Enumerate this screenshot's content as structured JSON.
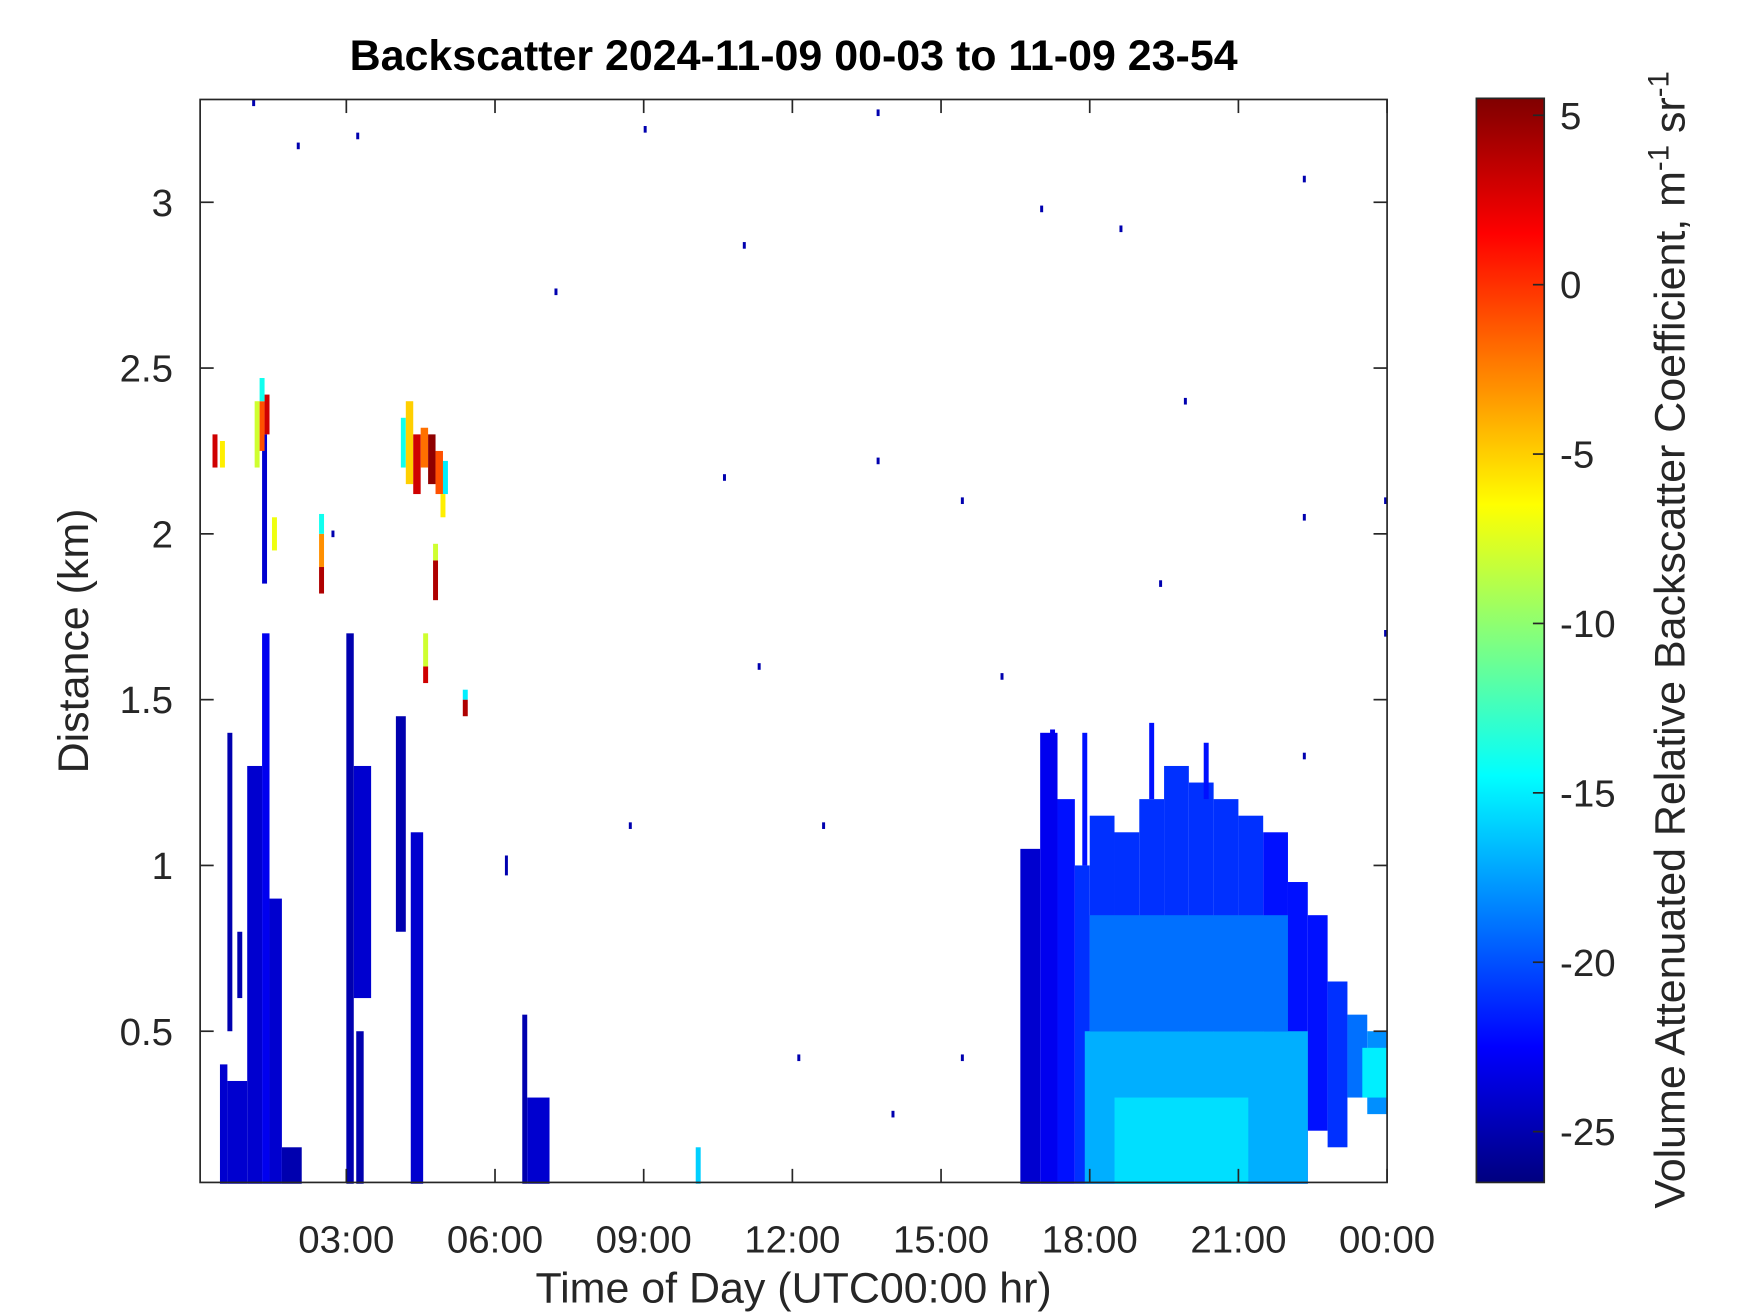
{
  "chart_data": {
    "type": "heatmap",
    "title": "Backscatter 2024-11-09 00-03 to 11-09 23-54",
    "x_label": "Time of Day (UTC00:00 hr)",
    "y_label": "Distance (km)",
    "colorbar_label": [
      "Volume Attenuated Relative Backscatter Coefficient, m",
      "-1",
      " sr",
      "-1"
    ],
    "colormap": "jet",
    "xlim": [
      0.05,
      24
    ],
    "xticks": [
      {
        "value": 3,
        "label": "03:00"
      },
      {
        "value": 6,
        "label": "06:00"
      },
      {
        "value": 9,
        "label": "09:00"
      },
      {
        "value": 12,
        "label": "12:00"
      },
      {
        "value": 15,
        "label": "15:00"
      },
      {
        "value": 18,
        "label": "18:00"
      },
      {
        "value": 21,
        "label": "21:00"
      },
      {
        "value": 24,
        "label": "00:00"
      }
    ],
    "ylim": [
      0.044,
      3.31
    ],
    "yticks": [
      0.5,
      1,
      1.5,
      2,
      2.5,
      3
    ],
    "clim": [
      -26.5,
      5.5
    ],
    "cticks": [
      5,
      0,
      -5,
      -10,
      -15,
      -20,
      -25
    ],
    "cells": [
      [
        16.6,
        17.0,
        0.04,
        1.05,
        -24
      ],
      [
        17.0,
        17.35,
        0.04,
        1.4,
        -23
      ],
      [
        17.35,
        17.7,
        0.04,
        1.2,
        -22
      ],
      [
        17.7,
        18.0,
        0.04,
        1.0,
        -21
      ],
      [
        17.85,
        17.95,
        1.0,
        1.4,
        -22
      ],
      [
        18.0,
        18.5,
        0.04,
        1.15,
        -21
      ],
      [
        18.5,
        19.0,
        0.04,
        1.1,
        -21
      ],
      [
        19.0,
        19.5,
        0.04,
        1.2,
        -21
      ],
      [
        19.5,
        20.0,
        0.04,
        1.3,
        -21
      ],
      [
        20.0,
        20.5,
        0.04,
        1.25,
        -21
      ],
      [
        20.5,
        21.0,
        0.04,
        1.2,
        -21
      ],
      [
        21.0,
        21.5,
        0.04,
        1.15,
        -21
      ],
      [
        21.5,
        22.0,
        0.04,
        1.1,
        -22
      ],
      [
        22.0,
        22.4,
        0.04,
        0.95,
        -22
      ],
      [
        22.4,
        22.8,
        0.2,
        0.85,
        -22
      ],
      [
        22.8,
        23.2,
        0.15,
        0.65,
        -21
      ],
      [
        23.2,
        23.6,
        0.3,
        0.55,
        -19
      ],
      [
        23.6,
        24.0,
        0.25,
        0.5,
        -18
      ],
      [
        17.9,
        22.4,
        0.04,
        0.5,
        -17
      ],
      [
        18.0,
        22.0,
        0.5,
        0.85,
        -19
      ],
      [
        18.5,
        21.2,
        0.04,
        0.3,
        -15.5
      ],
      [
        23.5,
        24.0,
        0.3,
        0.45,
        -15
      ],
      [
        17.2,
        17.3,
        1.2,
        1.41,
        -23
      ],
      [
        19.2,
        19.3,
        1.2,
        1.43,
        -22
      ],
      [
        20.3,
        20.4,
        1.2,
        1.37,
        -22
      ],
      [
        0.45,
        0.6,
        0.04,
        0.4,
        -24
      ],
      [
        0.6,
        1.0,
        0.04,
        0.35,
        -24
      ],
      [
        0.6,
        0.7,
        0.5,
        1.4,
        -25
      ],
      [
        1.0,
        1.3,
        0.04,
        1.3,
        -24
      ],
      [
        1.3,
        1.45,
        0.04,
        1.7,
        -23
      ],
      [
        1.45,
        1.7,
        0.04,
        0.9,
        -24
      ],
      [
        1.7,
        2.1,
        0.04,
        0.15,
        -25
      ],
      [
        1.3,
        1.4,
        1.85,
        2.3,
        -24
      ],
      [
        0.8,
        0.9,
        0.6,
        0.8,
        -25
      ],
      [
        1.15,
        1.25,
        2.2,
        2.4,
        -8
      ],
      [
        1.25,
        1.35,
        2.25,
        2.4,
        -1
      ],
      [
        1.35,
        1.45,
        2.3,
        2.42,
        3
      ],
      [
        1.25,
        1.35,
        2.4,
        2.47,
        -14
      ],
      [
        0.3,
        0.4,
        2.2,
        2.3,
        3
      ],
      [
        0.45,
        0.55,
        2.2,
        2.28,
        -6
      ],
      [
        2.45,
        2.55,
        1.82,
        1.9,
        4
      ],
      [
        2.45,
        2.55,
        1.9,
        2.0,
        -3
      ],
      [
        2.45,
        2.55,
        2.0,
        2.06,
        -14
      ],
      [
        1.5,
        1.6,
        1.95,
        2.05,
        -7
      ],
      [
        3.0,
        3.15,
        0.04,
        1.7,
        -25
      ],
      [
        3.15,
        3.5,
        0.6,
        1.3,
        -24
      ],
      [
        3.2,
        3.35,
        0.04,
        0.5,
        -25
      ],
      [
        4.0,
        4.2,
        0.8,
        1.45,
        -25
      ],
      [
        4.3,
        4.55,
        0.04,
        1.1,
        -24
      ],
      [
        4.55,
        4.65,
        1.55,
        1.6,
        3
      ],
      [
        4.55,
        4.65,
        1.6,
        1.7,
        -8
      ],
      [
        4.1,
        4.2,
        2.2,
        2.35,
        -14
      ],
      [
        4.2,
        4.35,
        2.15,
        2.4,
        -5
      ],
      [
        4.35,
        4.5,
        2.12,
        2.3,
        3
      ],
      [
        4.5,
        4.65,
        2.2,
        2.32,
        -2
      ],
      [
        4.65,
        4.8,
        2.15,
        2.3,
        5
      ],
      [
        4.8,
        4.95,
        2.12,
        2.25,
        -1
      ],
      [
        4.95,
        5.05,
        2.12,
        2.22,
        -15
      ],
      [
        4.9,
        5.0,
        2.05,
        2.12,
        -6
      ],
      [
        4.75,
        4.85,
        1.8,
        1.92,
        4
      ],
      [
        4.75,
        4.85,
        1.92,
        1.97,
        -8
      ],
      [
        5.35,
        5.45,
        1.45,
        1.5,
        4
      ],
      [
        5.35,
        5.45,
        1.5,
        1.53,
        -15
      ],
      [
        6.55,
        6.65,
        0.04,
        0.55,
        -25
      ],
      [
        6.65,
        7.1,
        0.04,
        0.3,
        -24
      ],
      [
        10.05,
        10.15,
        0.04,
        0.15,
        -16
      ],
      [
        1.1,
        1.16,
        3.29,
        3.31,
        -25
      ],
      [
        2.0,
        2.06,
        3.16,
        3.18,
        -25
      ],
      [
        3.2,
        3.26,
        3.19,
        3.21,
        -25
      ],
      [
        9.0,
        9.06,
        3.21,
        3.23,
        -25
      ],
      [
        13.7,
        13.76,
        3.26,
        3.28,
        -25
      ],
      [
        22.3,
        22.36,
        3.06,
        3.08,
        -25
      ],
      [
        17.0,
        17.06,
        2.97,
        2.99,
        -25
      ],
      [
        11.0,
        11.06,
        2.86,
        2.88,
        -25
      ],
      [
        7.2,
        7.26,
        2.72,
        2.74,
        -25
      ],
      [
        18.6,
        18.66,
        2.91,
        2.93,
        -25
      ],
      [
        13.7,
        13.76,
        2.21,
        2.23,
        -25
      ],
      [
        10.6,
        10.66,
        2.16,
        2.18,
        -25
      ],
      [
        15.4,
        15.46,
        2.09,
        2.11,
        -25
      ],
      [
        19.4,
        19.46,
        1.84,
        1.86,
        -25
      ],
      [
        11.3,
        11.36,
        1.59,
        1.61,
        -25
      ],
      [
        12.6,
        12.66,
        1.11,
        1.13,
        -25
      ],
      [
        8.7,
        8.76,
        1.11,
        1.13,
        -25
      ],
      [
        16.2,
        16.26,
        1.56,
        1.58,
        -25
      ],
      [
        22.3,
        22.36,
        1.32,
        1.34,
        -25
      ],
      [
        23.94,
        24.0,
        2.09,
        2.11,
        -25
      ],
      [
        23.94,
        24.0,
        1.69,
        1.71,
        -25
      ],
      [
        15.4,
        15.46,
        0.41,
        0.43,
        -25
      ],
      [
        14.0,
        14.06,
        0.24,
        0.26,
        -25
      ],
      [
        12.1,
        12.16,
        0.41,
        0.43,
        -25
      ],
      [
        6.2,
        6.26,
        0.97,
        1.03,
        -25
      ],
      [
        2.7,
        2.76,
        1.99,
        2.01,
        -25
      ],
      [
        19.9,
        19.96,
        2.39,
        2.41,
        -25
      ],
      [
        22.3,
        22.36,
        2.04,
        2.06,
        -25
      ]
    ]
  }
}
